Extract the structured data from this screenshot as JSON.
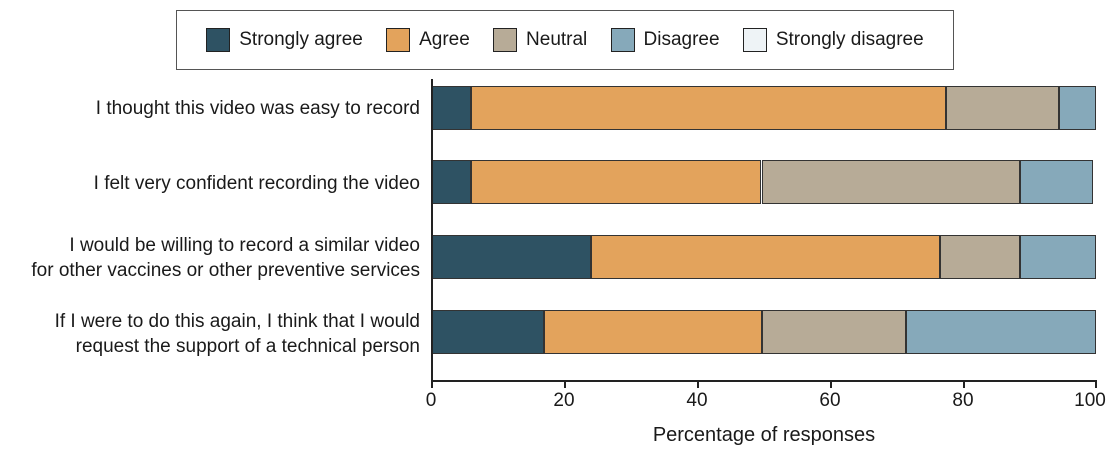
{
  "chart_data": {
    "type": "bar",
    "orientation": "horizontal",
    "stacked": true,
    "title": "",
    "xlabel": "Percentage of responses",
    "ylabel": "",
    "xlim": [
      0,
      100
    ],
    "xticks": [
      "0",
      "20",
      "40",
      "60",
      "80",
      "100"
    ],
    "legend": {
      "placement": "top",
      "entries": [
        {
          "name": "Strongly agree",
          "color": "#2e5263"
        },
        {
          "name": "Agree",
          "color": "#e3a35c"
        },
        {
          "name": "Neutral",
          "color": "#b7ab97"
        },
        {
          "name": "Disagree",
          "color": "#86a9ba"
        },
        {
          "name": "Strongly disagree",
          "color": "#eef3f6"
        }
      ]
    },
    "categories": [
      {
        "line1": "I thought this video was easy to record",
        "line2": ""
      },
      {
        "line1": "I felt very confident recording the video",
        "line2": ""
      },
      {
        "line1": "I would be willing to record a similar video",
        "line2": "for other vaccines or other preventive services"
      },
      {
        "line1": "If I were to do this again, I think that I would",
        "line2": "request the support of a technical person"
      }
    ],
    "series": [
      {
        "name": "Strongly agree",
        "values": [
          6,
          6,
          24,
          17
        ]
      },
      {
        "name": "Agree",
        "values": [
          71.5,
          43.7,
          52.6,
          32.7
        ]
      },
      {
        "name": "Neutral",
        "values": [
          17,
          38.9,
          12,
          21.8
        ]
      },
      {
        "name": "Disagree",
        "values": [
          5.5,
          10.9,
          11.4,
          28.5
        ]
      },
      {
        "name": "Strongly disagree",
        "values": [
          0,
          0,
          0,
          0
        ]
      }
    ]
  }
}
